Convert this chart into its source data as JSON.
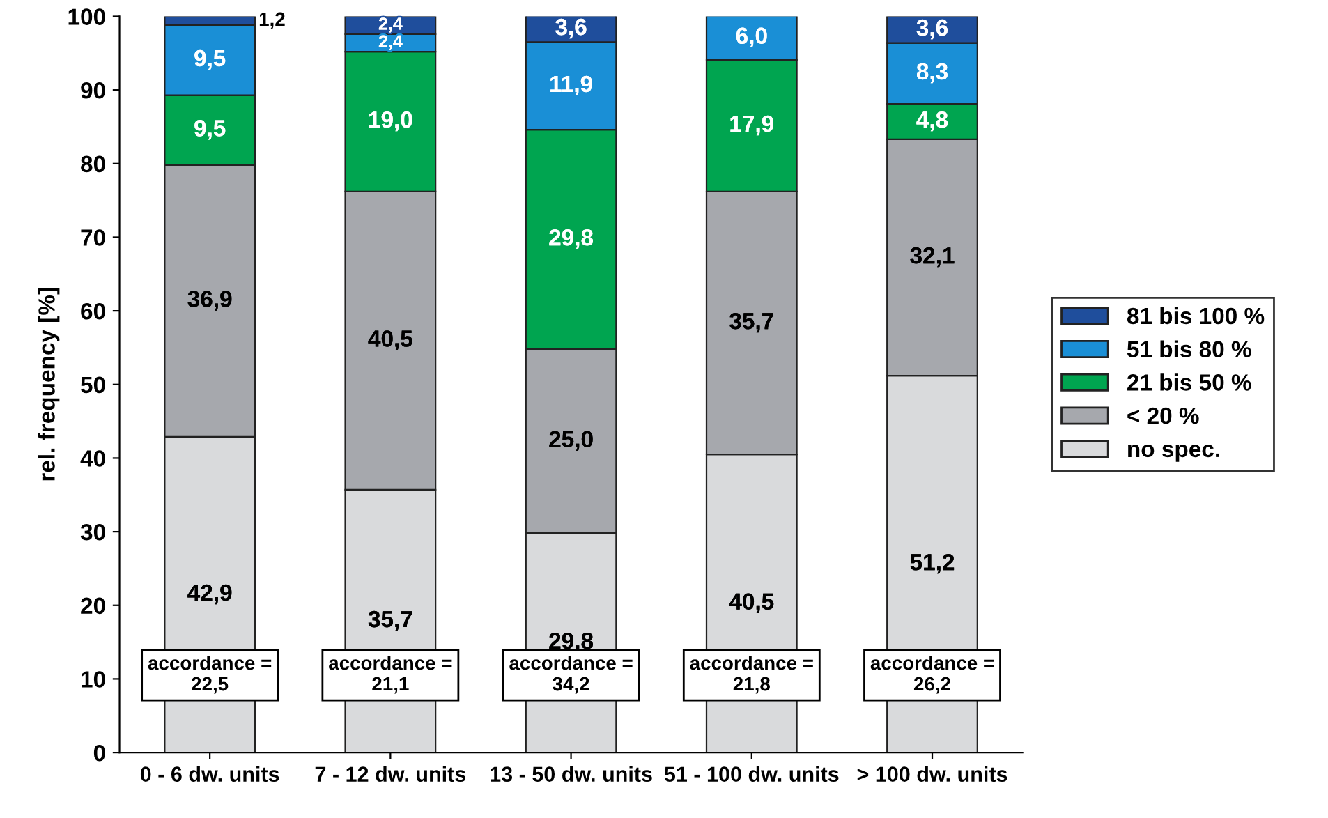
{
  "chart_data": {
    "type": "bar",
    "stacked": true,
    "ylabel": "rel. frequency [%]",
    "categories": [
      "0 - 6 dw. units",
      "7 - 12 dw. units",
      "13 - 50 dw. units",
      "51 - 100 dw. units",
      "> 100 dw. units"
    ],
    "series": [
      {
        "name": "no spec.",
        "color": "#d9dadc",
        "values": [
          42.9,
          35.7,
          29.8,
          40.5,
          51.2
        ],
        "value_labels": [
          "42,9",
          "35,7",
          "29,8",
          "40,5",
          "51,2"
        ]
      },
      {
        "name": "< 20 %",
        "color": "#a6a8ad",
        "values": [
          36.9,
          40.5,
          25.0,
          35.7,
          32.1
        ],
        "value_labels": [
          "36,9",
          "40,5",
          "25,0",
          "35,7",
          "32,1"
        ]
      },
      {
        "name": "21 bis 50 %",
        "color": "#00a550",
        "values": [
          9.5,
          19.0,
          29.8,
          17.9,
          4.8
        ],
        "value_labels": [
          "9,5",
          "19,0",
          "29,8",
          "17,9",
          "4,8"
        ]
      },
      {
        "name": "51 bis 80 %",
        "color": "#1a8fd6",
        "values": [
          9.5,
          2.4,
          11.9,
          6.0,
          8.3
        ],
        "value_labels": [
          "9,5",
          "2,4",
          "11,9",
          "6,0",
          "8,3"
        ]
      },
      {
        "name": "81 bis 100 %",
        "color": "#1f4e9c",
        "values": [
          1.2,
          2.4,
          3.6,
          null,
          3.6
        ],
        "value_labels": [
          "1,2",
          "2,4",
          "3,6",
          null,
          "3,6"
        ]
      }
    ],
    "annotations": [
      "accordance =\n22,5",
      "accordance =\n21,1",
      "accordance =\n34,2",
      "accordance =\n21,8",
      "accordance =\n26,2"
    ],
    "ylim": [
      0,
      100
    ],
    "yticks": [
      0,
      10,
      20,
      30,
      40,
      50,
      60,
      70,
      80,
      90,
      100
    ],
    "grid": false,
    "legend": "right"
  }
}
